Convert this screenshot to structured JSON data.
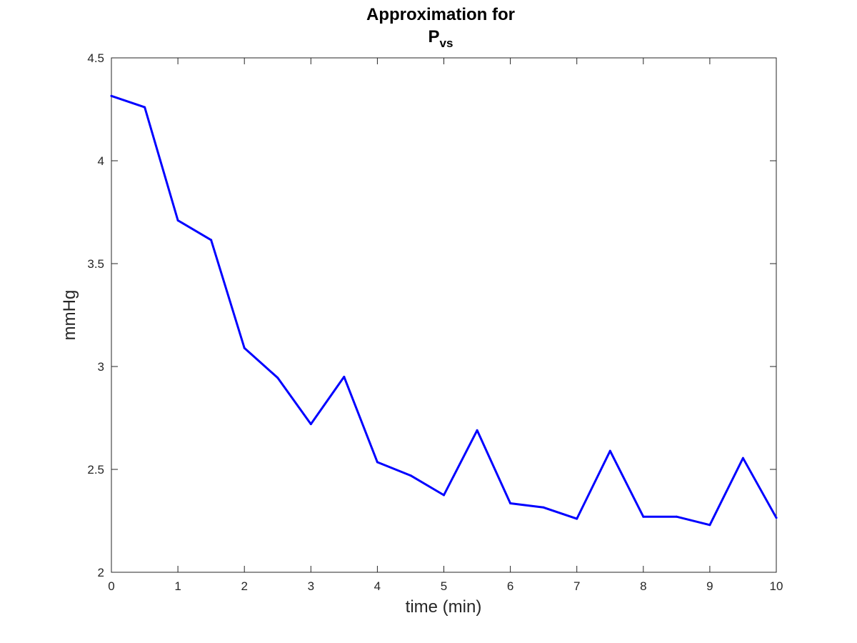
{
  "chart_data": {
    "type": "line",
    "title_line1": "Approximation for",
    "title_line2_main": "P",
    "title_line2_sub": "vs",
    "xlabel": "time (min)",
    "ylabel": "mmHg",
    "xlim": [
      0,
      10
    ],
    "ylim": [
      2,
      4.5
    ],
    "xticks": [
      "0",
      "1",
      "2",
      "3",
      "4",
      "5",
      "6",
      "7",
      "8",
      "9",
      "10"
    ],
    "yticks": [
      "2",
      "2.5",
      "3",
      "3.5",
      "4",
      "4.5"
    ],
    "grid": false,
    "line_color": "#0000ff",
    "series": [
      {
        "x": [
          0,
          0.5,
          1,
          1.5,
          2,
          2.5,
          3,
          3.5,
          4,
          4.5,
          5,
          5.5,
          6,
          6.5,
          7,
          7.5,
          8,
          8.5,
          9,
          9.5,
          10
        ],
        "y": [
          4.315,
          4.26,
          3.71,
          3.615,
          3.09,
          2.945,
          2.72,
          2.95,
          2.535,
          2.47,
          2.375,
          2.69,
          2.335,
          2.315,
          2.26,
          2.59,
          2.27,
          2.27,
          2.23,
          2.555,
          2.265
        ]
      }
    ]
  }
}
